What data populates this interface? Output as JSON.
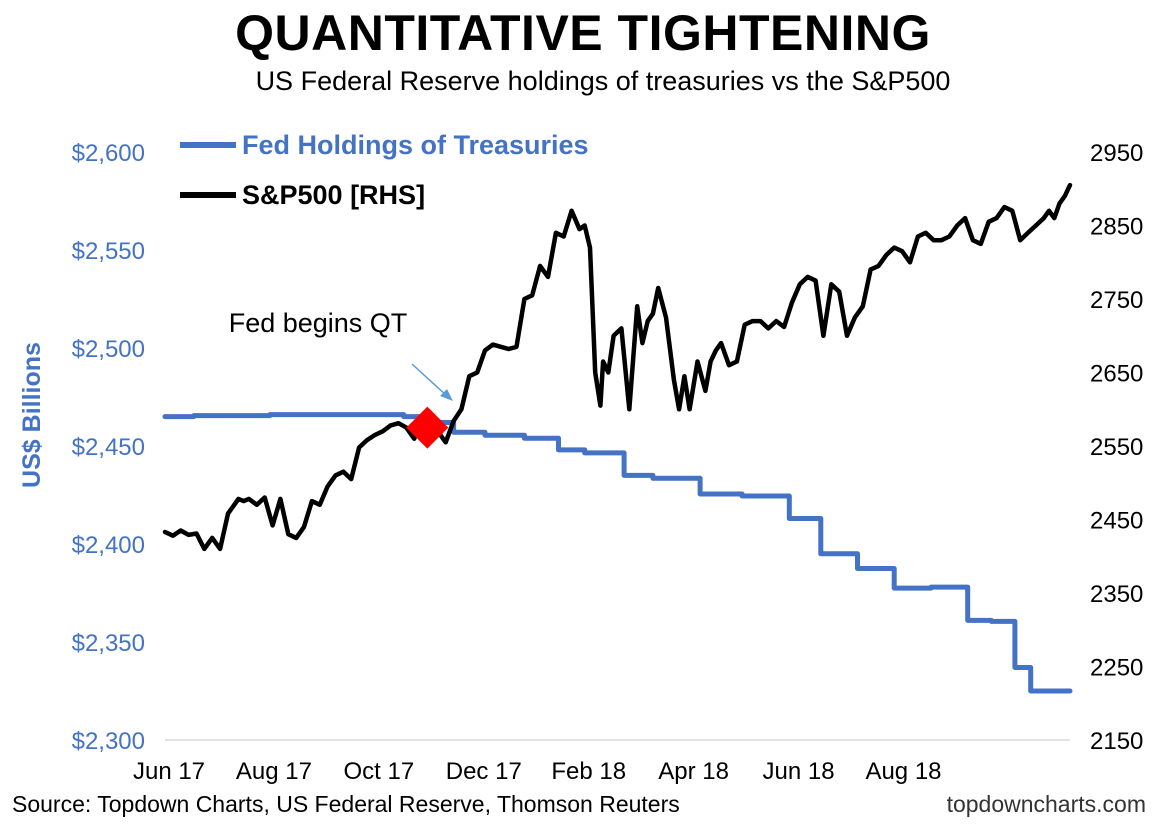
{
  "title": "QUANTITATIVE TIGHTENING",
  "subtitle": "US Federal Reserve holdings of treasuries vs the S&P500",
  "footer": {
    "source": "Source: Topdown Charts, US Federal Reserve, Thomson Reuters",
    "brand": "topdowncharts.com"
  },
  "colors": {
    "fed": "#4472C4",
    "spx": "#000000",
    "marker": "#FF0000"
  },
  "chart_data": {
    "type": "line",
    "x_ticks": [
      "Jun 17",
      "Aug 17",
      "Oct 17",
      "Dec 17",
      "Feb 18",
      "Apr 18",
      "Jun 18",
      "Aug 18"
    ],
    "ylabel_left": "US$ Billions",
    "ylim_left": [
      2300,
      2600
    ],
    "left_ticks": [
      "$2,300",
      "$2,350",
      "$2,400",
      "$2,450",
      "$2,500",
      "$2,550",
      "$2,600"
    ],
    "left_tick_values": [
      2300,
      2350,
      2400,
      2450,
      2500,
      2550,
      2600
    ],
    "ylim_right": [
      2150,
      2950
    ],
    "right_ticks": [
      "2150",
      "2250",
      "2350",
      "2450",
      "2550",
      "2650",
      "2750",
      "2850",
      "2950"
    ],
    "right_tick_values": [
      2150,
      2250,
      2350,
      2450,
      2550,
      2650,
      2750,
      2850,
      2950
    ],
    "legend": [
      "Fed Holdings of Treasuries",
      "S&P500 [RHS]"
    ],
    "annotation": {
      "text": "Fed begins QT",
      "x_month": 5.0,
      "spx_value": 2575
    },
    "series": [
      {
        "name": "Fed Holdings of Treasuries",
        "axis": "left",
        "x_months": [
          0.0,
          0.55,
          0.55,
          2.0,
          2.0,
          4.55,
          4.55,
          5.0,
          5.0,
          5.5,
          5.5,
          6.1,
          6.1,
          6.85,
          6.85,
          7.5,
          7.5,
          8.0,
          8.0,
          8.75,
          8.75,
          9.3,
          9.3,
          10.2,
          10.2,
          11.0,
          11.0,
          11.9,
          11.9,
          12.5,
          12.5,
          13.2,
          13.2,
          13.9,
          13.9,
          14.6,
          14.6,
          15.3,
          15.3,
          15.75,
          15.75,
          16.2,
          16.2,
          16.5,
          16.5,
          17.25
        ],
        "values": [
          2465,
          2465,
          2465.5,
          2465.5,
          2466,
          2466,
          2465,
          2465,
          2462,
          2462,
          2457,
          2457,
          2455.5,
          2455.5,
          2454,
          2454,
          2448,
          2448,
          2446.5,
          2446.5,
          2435,
          2435,
          2433.5,
          2433.5,
          2425.5,
          2425.5,
          2424.5,
          2424.5,
          2413,
          2413,
          2395,
          2395,
          2387.5,
          2387.5,
          2377.5,
          2377.5,
          2378,
          2378,
          2361,
          2361,
          2360.5,
          2360.5,
          2337,
          2337,
          2325,
          2325
        ]
      },
      {
        "name": "S&P500 [RHS]",
        "axis": "right",
        "x_months": [
          0.0,
          0.15,
          0.3,
          0.45,
          0.6,
          0.75,
          0.9,
          1.05,
          1.2,
          1.3,
          1.4,
          1.5,
          1.6,
          1.75,
          1.9,
          2.05,
          2.2,
          2.35,
          2.5,
          2.65,
          2.8,
          2.95,
          3.1,
          3.25,
          3.4,
          3.55,
          3.7,
          3.85,
          4.0,
          4.15,
          4.3,
          4.45,
          4.6,
          4.75,
          4.9,
          5.05,
          5.2,
          5.35,
          5.5,
          5.65,
          5.8,
          5.95,
          6.1,
          6.25,
          6.4,
          6.55,
          6.7,
          6.85,
          7.0,
          7.15,
          7.3,
          7.45,
          7.6,
          7.75,
          7.9,
          8.0,
          8.1,
          8.2,
          8.3,
          8.35,
          8.45,
          8.55,
          8.7,
          8.85,
          9.0,
          9.1,
          9.2,
          9.3,
          9.4,
          9.55,
          9.7,
          9.8,
          9.9,
          10.0,
          10.15,
          10.3,
          10.4,
          10.5,
          10.6,
          10.75,
          10.9,
          11.05,
          11.2,
          11.35,
          11.5,
          11.65,
          11.8,
          11.95,
          12.1,
          12.25,
          12.4,
          12.55,
          12.7,
          12.85,
          13.0,
          13.15,
          13.3,
          13.45,
          13.6,
          13.75,
          13.9,
          14.05,
          14.2,
          14.35,
          14.5,
          14.65,
          14.8,
          14.95,
          15.1,
          15.25,
          15.4,
          15.55,
          15.7,
          15.85,
          16.0,
          16.15,
          16.3,
          16.45,
          16.6,
          16.75,
          16.85,
          16.95,
          17.05,
          17.15,
          17.25
        ],
        "values": [
          2433,
          2428,
          2435,
          2429,
          2431,
          2410,
          2425,
          2410,
          2458,
          2468,
          2478,
          2475,
          2478,
          2470,
          2480,
          2442,
          2478,
          2430,
          2425,
          2440,
          2475,
          2470,
          2495,
          2510,
          2515,
          2505,
          2548,
          2558,
          2565,
          2570,
          2578,
          2581,
          2575,
          2560,
          2590,
          2590,
          2570,
          2555,
          2584,
          2600,
          2645,
          2650,
          2680,
          2688,
          2685,
          2682,
          2685,
          2750,
          2755,
          2795,
          2780,
          2840,
          2835,
          2870,
          2845,
          2850,
          2820,
          2650,
          2605,
          2665,
          2650,
          2700,
          2710,
          2600,
          2740,
          2690,
          2720,
          2730,
          2765,
          2725,
          2640,
          2600,
          2645,
          2600,
          2665,
          2625,
          2665,
          2680,
          2690,
          2660,
          2665,
          2715,
          2720,
          2720,
          2710,
          2720,
          2712,
          2745,
          2770,
          2780,
          2775,
          2700,
          2770,
          2760,
          2700,
          2725,
          2740,
          2790,
          2795,
          2810,
          2820,
          2815,
          2800,
          2835,
          2840,
          2830,
          2830,
          2835,
          2850,
          2860,
          2830,
          2825,
          2855,
          2860,
          2875,
          2870,
          2830,
          2840,
          2850,
          2860,
          2870,
          2860,
          2880,
          2890,
          2905
        ]
      }
    ]
  }
}
